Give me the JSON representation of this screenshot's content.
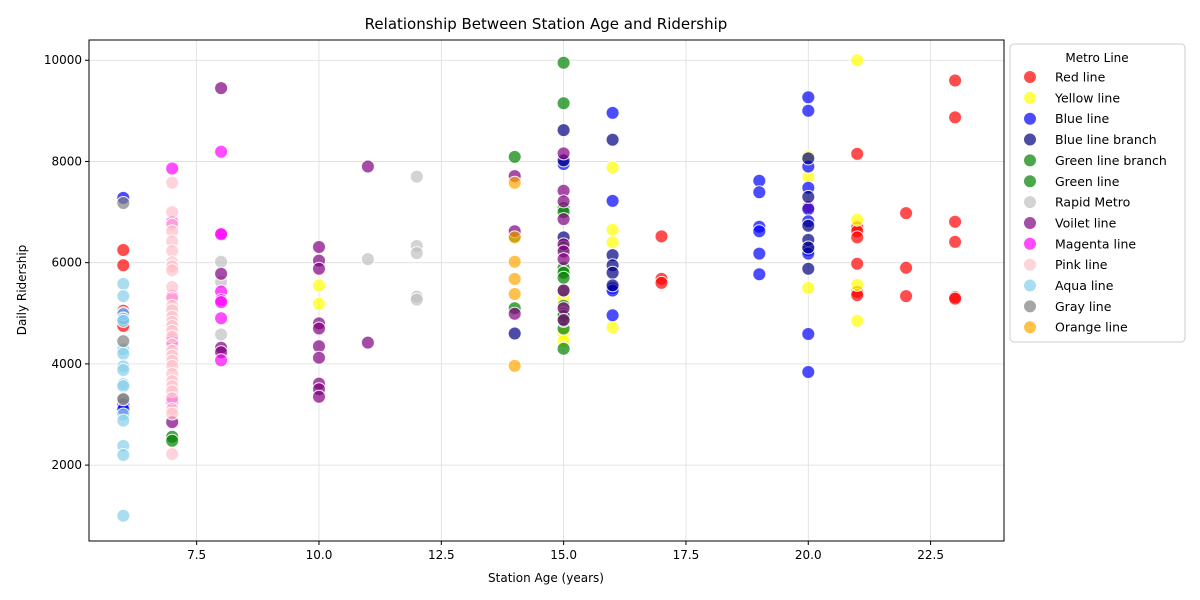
{
  "chart_data": {
    "type": "scatter",
    "title": "Relationship Between Station Age and Ridership",
    "xlabel": "Station Age (years)",
    "ylabel": "Daily Ridership",
    "xlim": [
      5.3,
      24.0
    ],
    "ylim": [
      500,
      10400
    ],
    "xticks": [
      7.5,
      10.0,
      12.5,
      15.0,
      17.5,
      20.0,
      22.5
    ],
    "xtick_labels": [
      "7.5",
      "10.0",
      "12.5",
      "15.0",
      "17.5",
      "20.0",
      "22.5"
    ],
    "yticks": [
      2000,
      4000,
      6000,
      8000,
      10000
    ],
    "ytick_labels": [
      "2000",
      "4000",
      "6000",
      "8000",
      "10000"
    ],
    "grid": true,
    "legend_title": "Metro Line",
    "legend_position": "outside-top-right",
    "marker_opacity": 0.7,
    "series": [
      {
        "name": "Red line",
        "color": "#ff0000",
        "points": [
          [
            6,
            6250
          ],
          [
            6,
            5950
          ],
          [
            6,
            5050
          ],
          [
            6,
            4750
          ],
          [
            17,
            6520
          ],
          [
            17,
            5680
          ],
          [
            17,
            5600
          ],
          [
            20,
            7100
          ],
          [
            21,
            8150
          ],
          [
            21,
            6700
          ],
          [
            21,
            6620
          ],
          [
            21,
            6500
          ],
          [
            21,
            5980
          ],
          [
            21,
            5420
          ],
          [
            21,
            5360
          ],
          [
            22,
            6980
          ],
          [
            22,
            5900
          ],
          [
            22,
            5340
          ],
          [
            23,
            9600
          ],
          [
            23,
            8870
          ],
          [
            23,
            6810
          ],
          [
            23,
            6410
          ],
          [
            23,
            5320
          ],
          [
            23,
            5290
          ]
        ]
      },
      {
        "name": "Yellow line",
        "color": "#ffff00",
        "points": [
          [
            10,
            5550
          ],
          [
            10,
            5190
          ],
          [
            15,
            5300
          ],
          [
            15,
            4600
          ],
          [
            15,
            4450
          ],
          [
            16,
            7880
          ],
          [
            16,
            6650
          ],
          [
            16,
            6400
          ],
          [
            16,
            4720
          ],
          [
            20,
            8100
          ],
          [
            20,
            7700
          ],
          [
            20,
            5500
          ],
          [
            21,
            10000
          ],
          [
            21,
            6850
          ],
          [
            21,
            5560
          ],
          [
            21,
            4850
          ]
        ]
      },
      {
        "name": "Blue line",
        "color": "#0000ff",
        "points": [
          [
            6,
            7280
          ],
          [
            6,
            5000
          ],
          [
            6,
            4900
          ],
          [
            6,
            3200
          ],
          [
            6,
            3100
          ],
          [
            15,
            7950
          ],
          [
            16,
            8960
          ],
          [
            16,
            7220
          ],
          [
            16,
            5500
          ],
          [
            16,
            5450
          ],
          [
            16,
            4960
          ],
          [
            19,
            7620
          ],
          [
            19,
            7390
          ],
          [
            19,
            6710
          ],
          [
            19,
            6620
          ],
          [
            19,
            6180
          ],
          [
            19,
            5770
          ],
          [
            20,
            9270
          ],
          [
            20,
            9000
          ],
          [
            20,
            7900
          ],
          [
            20,
            7480
          ],
          [
            20,
            7060
          ],
          [
            20,
            6820
          ],
          [
            20,
            6250
          ],
          [
            20,
            6180
          ],
          [
            20,
            4590
          ],
          [
            20,
            3840
          ]
        ]
      },
      {
        "name": "Blue line branch",
        "color": "#000080",
        "points": [
          [
            14,
            4600
          ],
          [
            15,
            8620
          ],
          [
            15,
            8020
          ],
          [
            15,
            6500
          ],
          [
            16,
            8430
          ],
          [
            16,
            6150
          ],
          [
            16,
            5950
          ],
          [
            16,
            5800
          ],
          [
            16,
            5550
          ],
          [
            20,
            8060
          ],
          [
            20,
            7300
          ],
          [
            20,
            6730
          ],
          [
            20,
            6450
          ],
          [
            20,
            6300
          ],
          [
            20,
            5880
          ]
        ]
      },
      {
        "name": "Green line branch",
        "color": "#008000",
        "points": [
          [
            14,
            8090
          ],
          [
            14,
            6520
          ],
          [
            14,
            5100
          ],
          [
            15,
            9950
          ],
          [
            15,
            5450
          ],
          [
            15,
            5150
          ],
          [
            15,
            5000
          ],
          [
            15,
            4700
          ],
          [
            15,
            4300
          ]
        ]
      },
      {
        "name": "Green line",
        "color": "#008000",
        "points": [
          [
            7,
            2560
          ],
          [
            7,
            2480
          ],
          [
            15,
            9150
          ],
          [
            15,
            7080
          ],
          [
            15,
            7000
          ],
          [
            15,
            6300
          ],
          [
            15,
            5900
          ],
          [
            15,
            5800
          ],
          [
            15,
            5700
          ],
          [
            15,
            4950
          ],
          [
            15,
            4850
          ]
        ]
      },
      {
        "name": "Rapid Metro",
        "color": "#c0c0c0",
        "points": [
          [
            8,
            6020
          ],
          [
            8,
            5620
          ],
          [
            8,
            4580
          ],
          [
            11,
            6070
          ],
          [
            12,
            7700
          ],
          [
            12,
            6330
          ],
          [
            12,
            6190
          ],
          [
            12,
            5330
          ],
          [
            12,
            5270
          ]
        ]
      },
      {
        "name": "Voilet line",
        "color": "#800080",
        "points": [
          [
            7,
            2850
          ],
          [
            8,
            9450
          ],
          [
            8,
            5780
          ],
          [
            8,
            4320
          ],
          [
            8,
            4230
          ],
          [
            10,
            6310
          ],
          [
            10,
            6040
          ],
          [
            10,
            5880
          ],
          [
            10,
            4800
          ],
          [
            10,
            4700
          ],
          [
            10,
            4350
          ],
          [
            10,
            4120
          ],
          [
            10,
            3610
          ],
          [
            10,
            3500
          ],
          [
            10,
            3350
          ],
          [
            11,
            7900
          ],
          [
            11,
            4420
          ],
          [
            14,
            7710
          ],
          [
            14,
            6620
          ],
          [
            14,
            4990
          ],
          [
            15,
            8160
          ],
          [
            15,
            7420
          ],
          [
            15,
            7210
          ],
          [
            15,
            6860
          ],
          [
            15,
            6360
          ],
          [
            15,
            6220
          ],
          [
            15,
            6070
          ],
          [
            15,
            5450
          ],
          [
            15,
            5100
          ],
          [
            15,
            4870
          ]
        ]
      },
      {
        "name": "Magenta line",
        "color": "#ff00ff",
        "points": [
          [
            7,
            7860
          ],
          [
            7,
            6800
          ],
          [
            7,
            5340
          ],
          [
            7,
            4480
          ],
          [
            7,
            4440
          ],
          [
            7,
            3320
          ],
          [
            7,
            3260
          ],
          [
            8,
            8190
          ],
          [
            8,
            6580
          ],
          [
            8,
            6560
          ],
          [
            8,
            5430
          ],
          [
            8,
            5260
          ],
          [
            8,
            5220
          ],
          [
            8,
            4900
          ],
          [
            8,
            4070
          ]
        ]
      },
      {
        "name": "Pink line",
        "color": "#ffc0cb",
        "points": [
          [
            7,
            7580
          ],
          [
            7,
            7000
          ],
          [
            7,
            6750
          ],
          [
            7,
            6620
          ],
          [
            7,
            6420
          ],
          [
            7,
            6230
          ],
          [
            7,
            6010
          ],
          [
            7,
            5930
          ],
          [
            7,
            5850
          ],
          [
            7,
            5520
          ],
          [
            7,
            5300
          ],
          [
            7,
            5150
          ],
          [
            7,
            5060
          ],
          [
            7,
            4930
          ],
          [
            7,
            4830
          ],
          [
            7,
            4750
          ],
          [
            7,
            4650
          ],
          [
            7,
            4540
          ],
          [
            7,
            4380
          ],
          [
            7,
            4260
          ],
          [
            7,
            4160
          ],
          [
            7,
            4060
          ],
          [
            7,
            3960
          ],
          [
            7,
            3800
          ],
          [
            7,
            3660
          ],
          [
            7,
            3560
          ],
          [
            7,
            3460
          ],
          [
            7,
            3320
          ],
          [
            7,
            3110
          ],
          [
            7,
            3020
          ],
          [
            7,
            2220
          ]
        ]
      },
      {
        "name": "Aqua line",
        "color": "#87ceeb",
        "points": [
          [
            6,
            5580
          ],
          [
            6,
            5340
          ],
          [
            6,
            4980
          ],
          [
            6,
            4890
          ],
          [
            6,
            4850
          ],
          [
            6,
            4290
          ],
          [
            6,
            4200
          ],
          [
            6,
            3950
          ],
          [
            6,
            3880
          ],
          [
            6,
            3600
          ],
          [
            6,
            3560
          ],
          [
            6,
            3000
          ],
          [
            6,
            2880
          ],
          [
            6,
            2380
          ],
          [
            6,
            2200
          ],
          [
            6,
            1000
          ]
        ]
      },
      {
        "name": "Gray line",
        "color": "#808080",
        "points": [
          [
            6,
            7180
          ],
          [
            6,
            4450
          ],
          [
            6,
            3320
          ],
          [
            6,
            3300
          ]
        ]
      },
      {
        "name": "Orange line",
        "color": "#ffa500",
        "points": [
          [
            14,
            7580
          ],
          [
            14,
            6500
          ],
          [
            14,
            6020
          ],
          [
            14,
            5680
          ],
          [
            14,
            5380
          ],
          [
            14,
            3960
          ]
        ]
      }
    ]
  }
}
